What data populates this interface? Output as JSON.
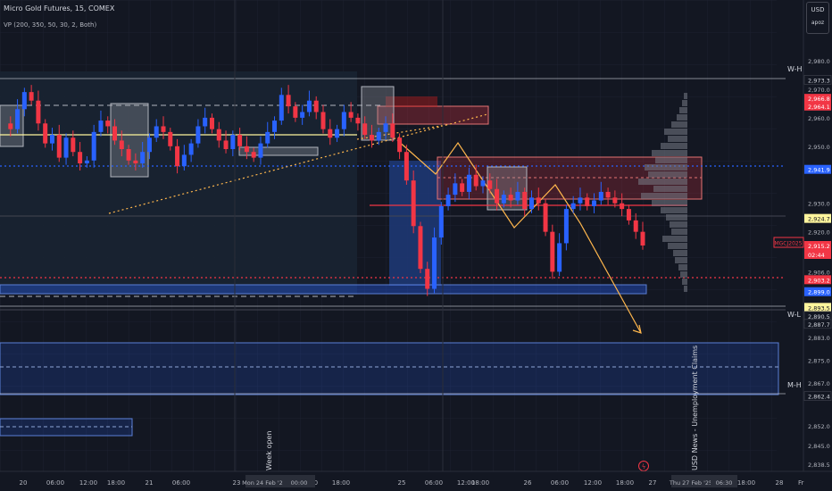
{
  "header": {
    "title": "Micro Gold Futures, 15, COMEX",
    "indicator": "VP (200, 350, 50, 30, 2, Both)"
  },
  "currency": {
    "code": "USD",
    "sub": "apoz"
  },
  "price_axis": {
    "ticks": [
      "2,980.0",
      "2,970.0",
      "2,960.0",
      "2,950.0",
      "2,930.0",
      "2,920.0",
      "2,906.0",
      "2,883.0",
      "2,875.0",
      "2,867.0",
      "2,852.0",
      "2,845.0",
      "2,838.5"
    ],
    "labels": [
      {
        "text": "2,973.3",
        "kind": "plain"
      },
      {
        "text": "2,966.8",
        "kind": "red"
      },
      {
        "text": "2,964.1",
        "kind": "red"
      },
      {
        "text": "2,941.9",
        "kind": "blue"
      },
      {
        "text": "2,924.7",
        "kind": "yellow"
      },
      {
        "text": "2,915.2",
        "kind": "last"
      },
      {
        "text": "02:44",
        "kind": "last"
      },
      {
        "text": "2,903.2",
        "kind": "red"
      },
      {
        "text": "2,899.0",
        "kind": "blue"
      },
      {
        "text": "2,893.5",
        "kind": "yellow"
      },
      {
        "text": "2,890.5",
        "kind": "plain"
      },
      {
        "text": "2,887.7",
        "kind": "plain"
      },
      {
        "text": "2,862.4",
        "kind": "plain"
      }
    ],
    "symbol_tag": "MGCJ2025"
  },
  "time_axis": {
    "labels": [
      "20",
      "06:00",
      "12:00",
      "18:00",
      "21",
      "06:00",
      "23",
      "12:00",
      "18:00",
      "25",
      "06:00",
      "12:00",
      "18:00",
      "26",
      "06:00",
      "12:00",
      "18:00",
      "27",
      "06:00",
      "12:00",
      "18:00",
      "28"
    ],
    "highlights": [
      "Mon 24 Feb '25",
      "00:00",
      "Thu 27 Feb '25",
      "06:30"
    ],
    "edge_label": "Fr"
  },
  "level_labels": {
    "week_high": "W-H",
    "week_low": "W-L",
    "month_high": "M-H"
  },
  "annotations": {
    "week_open": "Week open",
    "news": "USD News - Unemployment Claims"
  },
  "colors": {
    "background": "#131722",
    "up": "#2962ff",
    "down": "#f23645",
    "zone_blue": "#2962ff",
    "zone_red": "#f23645",
    "yellow": "#fff59d",
    "orange": "#ffb74d",
    "profile": "#787b86"
  },
  "chart_data": {
    "type": "candlestick",
    "instrument": "MGCJ2025",
    "interval": "15",
    "last_price": 2915.2,
    "series": [
      {
        "values": [
          2958.0,
          2956,
          2963,
          2969,
          2966,
          2958,
          2951,
          2954,
          2946,
          2953,
          2948,
          2944,
          2945,
          2955,
          2959,
          2957,
          2952,
          2949,
          2945,
          2944,
          2948,
          2953,
          2957,
          2955,
          2950,
          2943,
          2947,
          2951,
          2957,
          2960,
          2956,
          2952,
          2949,
          2954,
          2950,
          2948,
          2946,
          2951,
          2955,
          2959,
          2968,
          2964,
          2960,
          2962,
          2966,
          2962,
          2956,
          2953,
          2956,
          2962,
          2960,
          2958,
          2954,
          2952,
          2955,
          2958,
          2953,
          2948,
          2938,
          2922,
          2907,
          2900,
          2918,
          2929,
          2933,
          2937,
          2934,
          2940,
          2936,
          2938,
          2935,
          2930,
          2933,
          2931,
          2934,
          2928,
          2932,
          2930,
          2920,
          2906,
          2916,
          2928,
          2930,
          2932,
          2929,
          2931,
          2934,
          2932,
          2930,
          2928,
          2924,
          2920,
          2915.2
        ]
      }
    ]
  }
}
